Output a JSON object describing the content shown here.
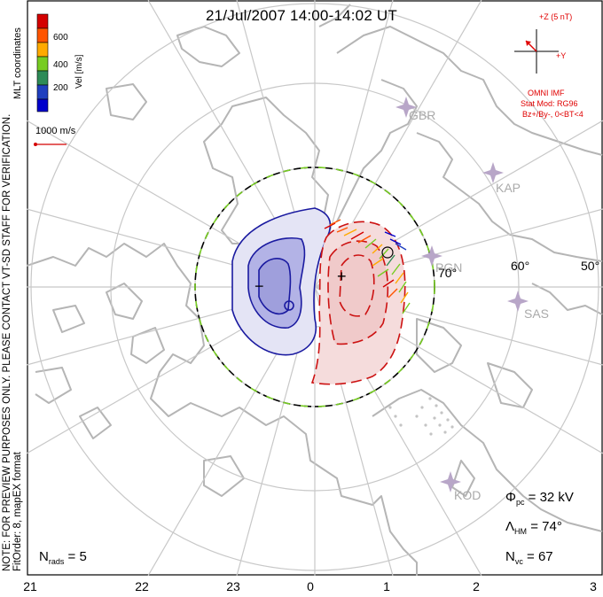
{
  "title": "21/Jul/2007 14:00-14:02 UT",
  "colorbar": {
    "label": "Vel [m/s]",
    "ticks": [
      "600",
      "400",
      "200"
    ],
    "colors": [
      "#d40000",
      "#ff5500",
      "#ffaa00",
      "#77cc22",
      "#2e8b57",
      "#1f3fbf",
      "#0000cc"
    ]
  },
  "coords_label": "MLT coordinates",
  "scale_vector": "1000 m/s",
  "notes": {
    "line1": "NOTE: FOR PREVIEW PURPOSES ONLY. PLEASE CONTACT VT-SD STAFF FOR VERIFICATION.",
    "line2": "FitOrder: 8, mapEX format"
  },
  "imf": {
    "axis_z": "+Z (5 nT)",
    "axis_y": "+Y",
    "source": "OMNI IMF",
    "model": "Stat Mod: RG96",
    "condition": "Bz+/By-, 0<BT<4"
  },
  "stations": [
    "GBR",
    "KAP",
    "PGN",
    "SAS",
    "KOD"
  ],
  "latitudes": [
    "70°",
    "60°",
    "50°"
  ],
  "mlt_ticks": [
    "21",
    "22",
    "23",
    "0",
    "1",
    "2",
    "3"
  ],
  "stats": {
    "phi_sym": "Φ",
    "phi_sub": "pc",
    "phi_value": "= 32 kV",
    "lam_sym": "Λ",
    "lam_sub": "HM",
    "lam_value": "= 74°",
    "nvc_sym": "N",
    "nvc_sub": "vc",
    "nvc_value": "= 67",
    "nrads_sym": "N",
    "nrads_sub": "rads",
    "nrads_value": "= 5"
  },
  "potential_markers": {
    "negative": "−",
    "positive": "+"
  },
  "colors": {
    "coastline": "#b5b5b5",
    "grid": "#c8c8c8",
    "imf_red": "#e00000",
    "neg_cell": "#1a1aa0",
    "pos_cell": "#cc1111"
  }
}
